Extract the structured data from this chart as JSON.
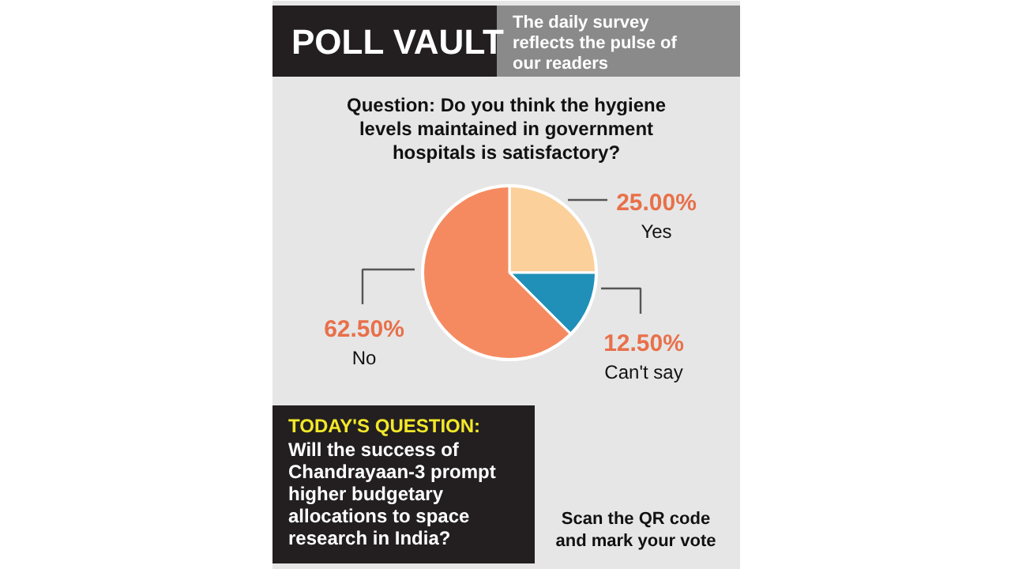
{
  "chart_data": {
    "type": "pie",
    "title": "POLL VAULT",
    "subtitle": "The daily survey reflects the pulse of our readers",
    "categories": [
      "Yes",
      "Can't say",
      "No"
    ],
    "values": [
      25,
      12.5,
      62.5
    ],
    "value_labels": [
      "25.00%",
      "12.50%",
      "62.50%"
    ],
    "colors": [
      "#fbd09a",
      "#2190b8",
      "#f58a61"
    ],
    "annotations": [
      "Question: Do you think the hygiene levels maintained in government hospitals is satisfactory?",
      "TODAY'S QUESTION:",
      "Will the success of Chandrayaan-3 prompt higher budgetary allocations to space research in India?",
      "Scan the QR code and mark your vote"
    ]
  }
}
